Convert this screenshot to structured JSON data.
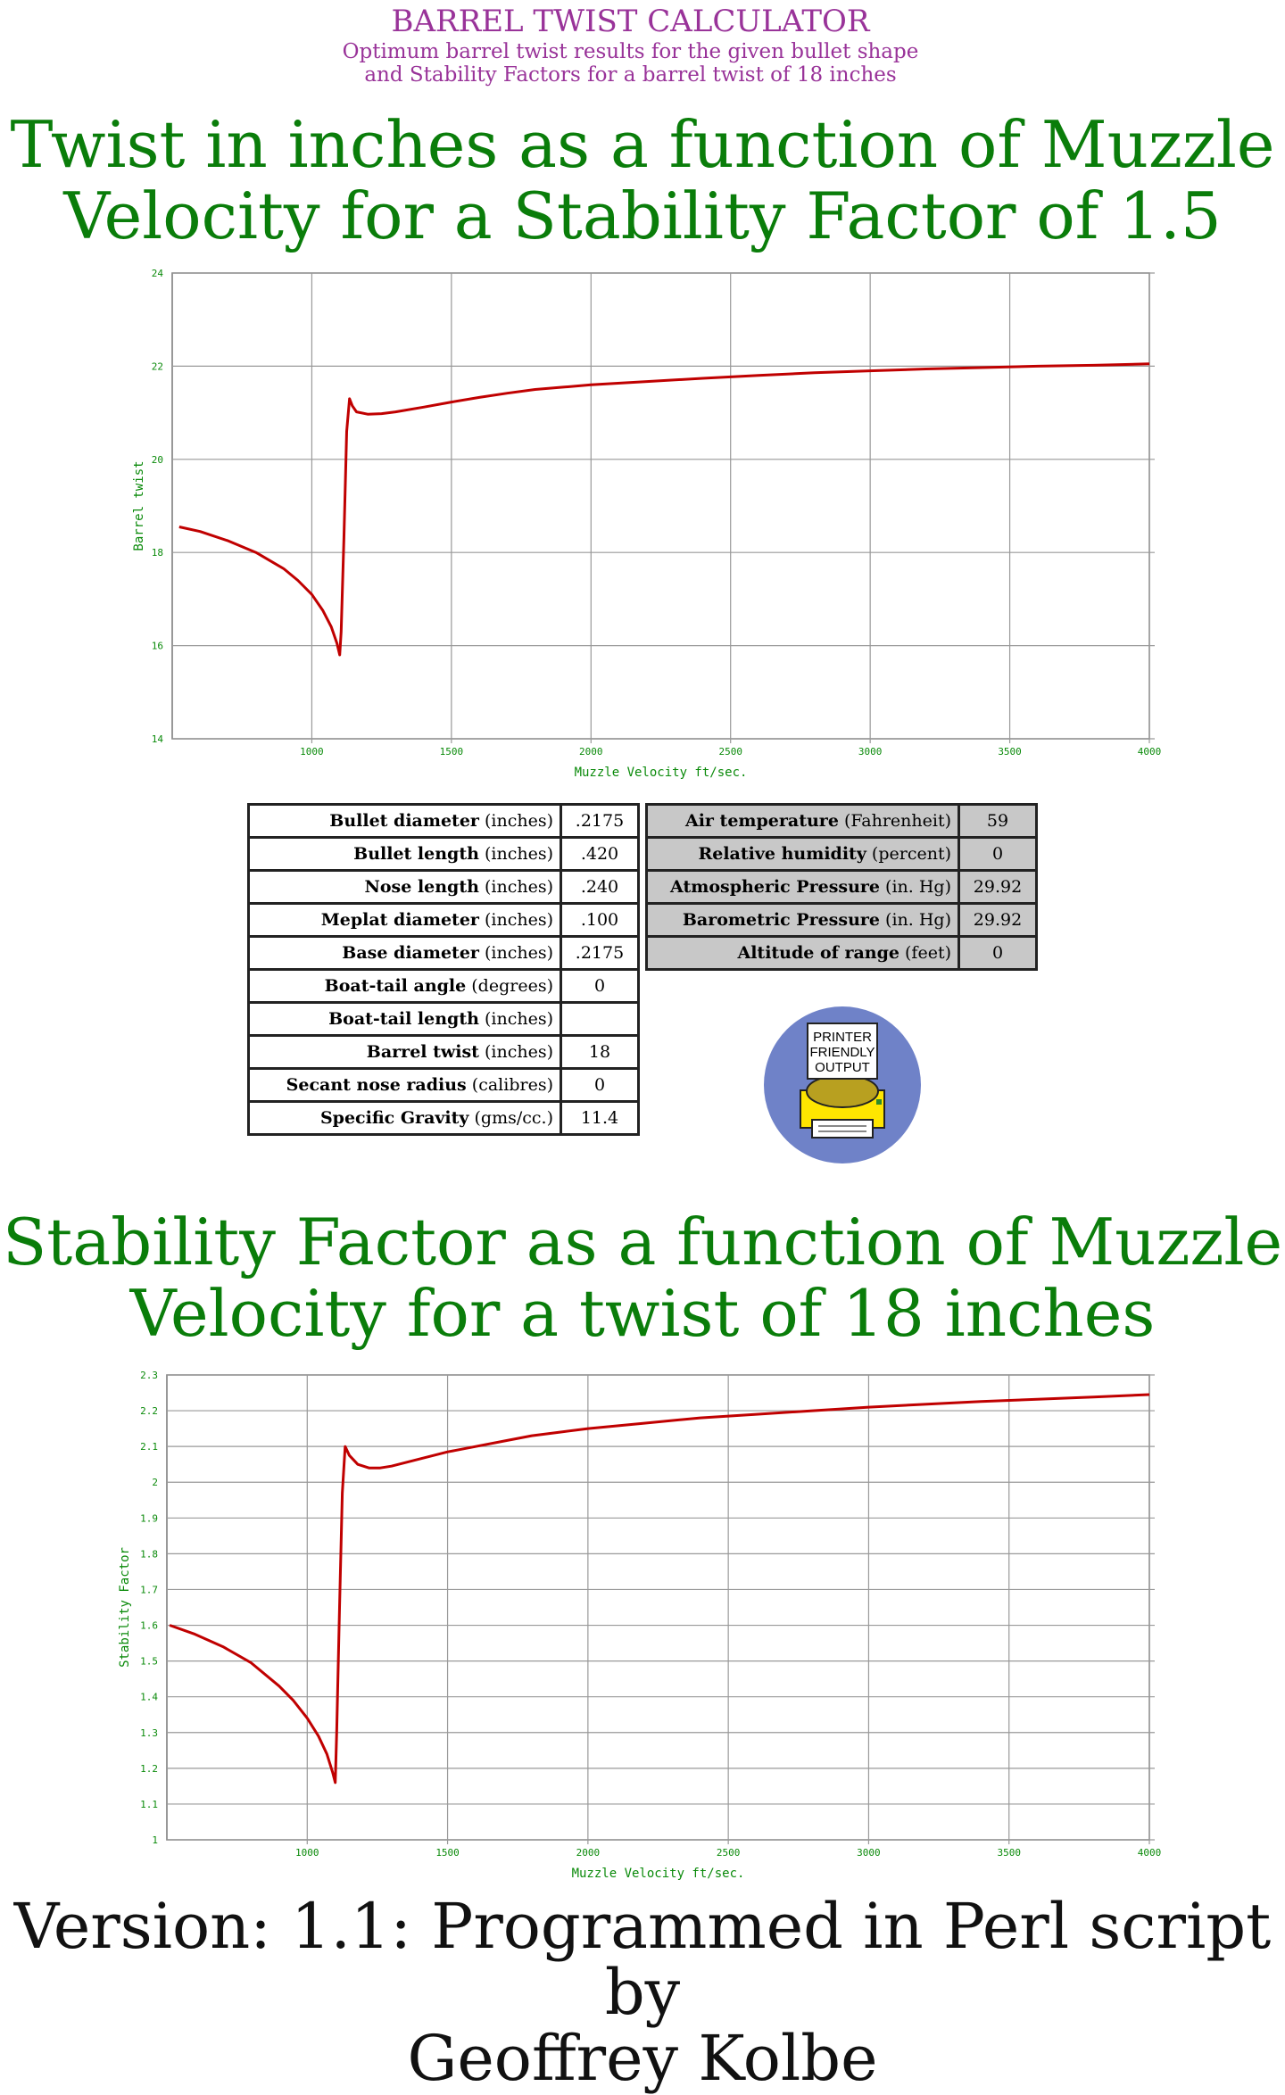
{
  "header": {
    "title": "BARREL TWIST CALCULATOR",
    "subtitle_line1": "Optimum barrel twist results for the given bullet shape",
    "subtitle_line2": "and Stability Factors for a barrel twist of 18 inches"
  },
  "chart1_title": {
    "line1": "Twist in inches as a function of Muzzle",
    "line2": "Velocity for a Stability Factor of 1.5"
  },
  "chart2_title": {
    "line1": "Stability Factor as a function of Muzzle",
    "line2": "Velocity for a twist of 18 inches"
  },
  "bullet_table": [
    {
      "bold": "Bullet diameter",
      "unit": "(inches)",
      "value": ".2175"
    },
    {
      "bold": "Bullet length",
      "unit": "(inches)",
      "value": ".420"
    },
    {
      "bold": "Nose length",
      "unit": "(inches)",
      "value": ".240"
    },
    {
      "bold": "Meplat diameter",
      "unit": "(inches)",
      "value": ".100"
    },
    {
      "bold": "Base diameter",
      "unit": "(inches)",
      "value": ".2175"
    },
    {
      "bold": "Boat-tail angle",
      "unit": "(degrees)",
      "value": "0"
    },
    {
      "bold": "Boat-tail length",
      "unit": "(inches)",
      "value": ""
    },
    {
      "bold": "Barrel twist",
      "unit": "(inches)",
      "value": "18"
    },
    {
      "bold": "Secant nose radius",
      "unit": "(calibres)",
      "value": "0"
    },
    {
      "bold": "Specific Gravity",
      "unit": "(gms/cc.)",
      "value": "11.4"
    }
  ],
  "env_table": [
    {
      "bold": "Air temperature",
      "unit": "(Fahrenheit)",
      "value": "59"
    },
    {
      "bold": "Relative humidity",
      "unit": "(percent)",
      "value": "0"
    },
    {
      "bold": "Atmospheric Pressure",
      "unit": "(in. Hg)",
      "value": "29.92"
    },
    {
      "bold": "Barometric Pressure",
      "unit": "(in. Hg)",
      "value": "29.92"
    },
    {
      "bold": "Altitude of range",
      "unit": "(feet)",
      "value": "0"
    }
  ],
  "printer_button": {
    "line1": "PRINTER",
    "line2": "FRIENDLY",
    "line3": "OUTPUT",
    "icon": "printer-icon"
  },
  "footer": {
    "line1": "Version: 1.1: Programmed in Perl script by",
    "line2": "Geoffrey Kolbe"
  },
  "colors": {
    "header": "#993399",
    "title": "#0a7d0a",
    "line": "#c00000",
    "grid": "#999999"
  },
  "chart_data": [
    {
      "type": "line",
      "xlabel": "Muzzle Velocity ft/sec.",
      "ylabel": "Barrel twist",
      "xlim": [
        500,
        4000
      ],
      "ylim": [
        14,
        24
      ],
      "xticks": [
        1000,
        1500,
        2000,
        2500,
        3000,
        3500,
        4000
      ],
      "yticks": [
        14,
        16,
        18,
        20,
        22,
        24
      ],
      "grid": true,
      "series": [
        {
          "x": [
            525,
            600,
            700,
            800,
            900,
            950,
            1000,
            1040,
            1070,
            1090,
            1100,
            1105,
            1115,
            1125,
            1135,
            1145,
            1160,
            1200,
            1250,
            1300,
            1400,
            1500,
            1600,
            1700,
            1800,
            1900,
            2000,
            2200,
            2400,
            2600,
            2800,
            3000,
            3200,
            3400,
            3600,
            3800,
            4000
          ],
          "y": [
            18.55,
            18.45,
            18.25,
            18.0,
            17.65,
            17.4,
            17.1,
            16.75,
            16.4,
            16.05,
            15.8,
            16.3,
            18.3,
            20.6,
            21.3,
            21.15,
            21.02,
            20.97,
            20.98,
            21.02,
            21.12,
            21.23,
            21.33,
            21.42,
            21.5,
            21.55,
            21.6,
            21.67,
            21.74,
            21.8,
            21.86,
            21.9,
            21.94,
            21.97,
            22.0,
            22.02,
            22.05
          ]
        }
      ]
    },
    {
      "type": "line",
      "xlabel": "Muzzle Velocity ft/sec.",
      "ylabel": "Stability Factor",
      "xlim": [
        500,
        4000
      ],
      "ylim": [
        1,
        2.3
      ],
      "xticks": [
        1000,
        1500,
        2000,
        2500,
        3000,
        3500,
        4000
      ],
      "yticks": [
        1,
        1.1,
        1.2,
        1.3,
        1.4,
        1.5,
        1.6,
        1.7,
        1.8,
        1.9,
        2,
        2.1,
        2.2,
        2.3
      ],
      "grid": true,
      "series": [
        {
          "x": [
            510,
            600,
            700,
            800,
            900,
            950,
            1000,
            1040,
            1070,
            1090,
            1100,
            1105,
            1115,
            1125,
            1135,
            1150,
            1180,
            1220,
            1260,
            1300,
            1400,
            1500,
            1600,
            1700,
            1800,
            1900,
            2000,
            2200,
            2400,
            2600,
            2800,
            3000,
            3200,
            3400,
            3600,
            3800,
            4000
          ],
          "y": [
            1.6,
            1.575,
            1.54,
            1.495,
            1.43,
            1.39,
            1.34,
            1.29,
            1.24,
            1.19,
            1.16,
            1.3,
            1.65,
            1.97,
            2.1,
            2.075,
            2.05,
            2.04,
            2.04,
            2.045,
            2.065,
            2.085,
            2.1,
            2.115,
            2.13,
            2.14,
            2.15,
            2.165,
            2.18,
            2.19,
            2.2,
            2.21,
            2.218,
            2.226,
            2.232,
            2.238,
            2.245
          ]
        }
      ]
    }
  ]
}
